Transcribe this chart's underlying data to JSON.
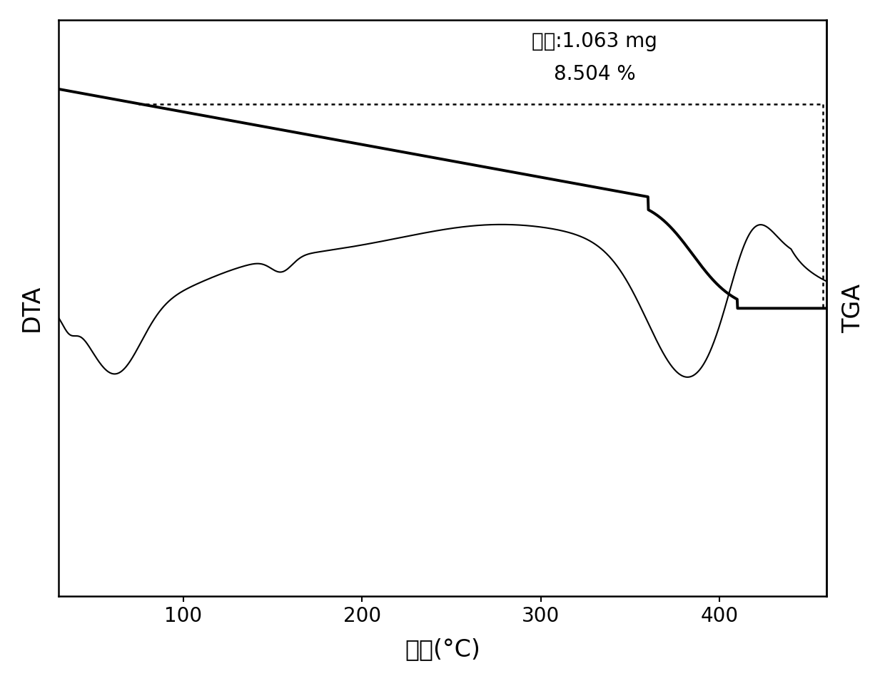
{
  "title": "",
  "xlabel": "温度(°C)",
  "ylabel_left": "DTA",
  "ylabel_right": "TGA",
  "annotation_line1": "失重:1.063 mg",
  "annotation_line2": "8.504 %",
  "x_min": 30,
  "x_max": 460,
  "background_color": "#ffffff",
  "line_color": "#000000",
  "dta_linewidth": 1.5,
  "tga_linewidth": 2.8,
  "font_size_label": 24,
  "font_size_annotation": 20,
  "font_size_tick": 20,
  "x_ticks": [
    100,
    200,
    300,
    400
  ]
}
